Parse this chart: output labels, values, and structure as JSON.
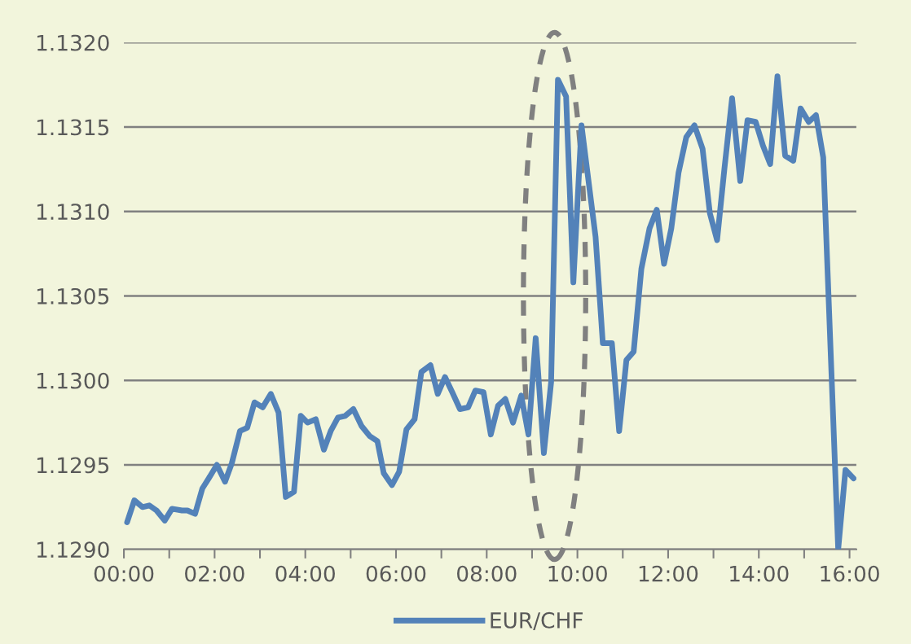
{
  "chart_data": {
    "type": "line",
    "legend": "bottom",
    "grid": "y",
    "marker": "none",
    "line_style": "solid",
    "xlim": [
      0,
      16.15
    ],
    "ylim": [
      1.129,
      1.132
    ],
    "xticks": [
      {
        "value": 0,
        "label": "00:00"
      },
      {
        "value": 1,
        "label": null
      },
      {
        "value": 2,
        "label": "02:00"
      },
      {
        "value": 3,
        "label": null
      },
      {
        "value": 4,
        "label": "04:00"
      },
      {
        "value": 5,
        "label": null
      },
      {
        "value": 6,
        "label": "06:00"
      },
      {
        "value": 7,
        "label": null
      },
      {
        "value": 8,
        "label": "08:00"
      },
      {
        "value": 9,
        "label": null
      },
      {
        "value": 10,
        "label": "10:00"
      },
      {
        "value": 11,
        "label": null
      },
      {
        "value": 12,
        "label": "12:00"
      },
      {
        "value": 13,
        "label": null
      },
      {
        "value": 14,
        "label": "14:00"
      },
      {
        "value": 15,
        "label": null
      },
      {
        "value": 16,
        "label": "16:00"
      }
    ],
    "yticks": [
      {
        "value": 1.129,
        "label": "1.1290"
      },
      {
        "value": 1.1295,
        "label": "1.1295"
      },
      {
        "value": 1.13,
        "label": "1.1300"
      },
      {
        "value": 1.1305,
        "label": "1.1305"
      },
      {
        "value": 1.131,
        "label": "1.1310"
      },
      {
        "value": 1.1315,
        "label": "1.1315"
      },
      {
        "value": 1.132,
        "label": "1.1320"
      }
    ],
    "series": [
      {
        "name": "EUR/CHF",
        "color": "#5382b9",
        "x": [
          0.07,
          0.23,
          0.41,
          0.56,
          0.72,
          0.9,
          1.06,
          1.28,
          1.4,
          1.57,
          1.73,
          1.87,
          2.05,
          2.23,
          2.38,
          2.56,
          2.72,
          2.88,
          3.06,
          3.24,
          3.41,
          3.57,
          3.75,
          3.9,
          4.05,
          4.23,
          4.41,
          4.56,
          4.72,
          4.88,
          5.06,
          5.24,
          5.42,
          5.59,
          5.73,
          5.91,
          6.07,
          6.23,
          6.41,
          6.56,
          6.76,
          6.92,
          7.08,
          7.24,
          7.41,
          7.59,
          7.75,
          7.93,
          8.09,
          8.25,
          8.41,
          8.58,
          8.76,
          8.92,
          9.08,
          9.26,
          9.42,
          9.57,
          9.75,
          9.91,
          10.09,
          10.4,
          10.56,
          10.76,
          10.92,
          11.08,
          11.24,
          11.41,
          11.59,
          11.75,
          11.91,
          12.07,
          12.23,
          12.4,
          12.58,
          12.76,
          12.92,
          13.08,
          13.24,
          13.41,
          13.59,
          13.75,
          13.93,
          14.09,
          14.25,
          14.41,
          14.58,
          14.76,
          14.92,
          15.1,
          15.26,
          15.42,
          15.75,
          15.91,
          16.09
        ],
        "values": [
          1.12916,
          1.12929,
          1.12925,
          1.12926,
          1.12923,
          1.12917,
          1.12924,
          1.12923,
          1.12923,
          1.12921,
          1.12936,
          1.12942,
          1.1295,
          1.1294,
          1.12951,
          1.1297,
          1.12972,
          1.12987,
          1.12984,
          1.12992,
          1.12981,
          1.12931,
          1.12934,
          1.12979,
          1.12975,
          1.12977,
          1.12959,
          1.1297,
          1.12978,
          1.12979,
          1.12983,
          1.12973,
          1.12967,
          1.12964,
          1.12945,
          1.12938,
          1.12946,
          1.12971,
          1.12977,
          1.13005,
          1.13009,
          1.12992,
          1.13002,
          1.12993,
          1.12983,
          1.12984,
          1.12994,
          1.12993,
          1.12968,
          1.12985,
          1.12989,
          1.12975,
          1.12991,
          1.12968,
          1.13025,
          1.12957,
          1.12999,
          1.13178,
          1.13168,
          1.13058,
          1.13151,
          1.13085,
          1.13022,
          1.13022,
          1.1297,
          1.13012,
          1.13017,
          1.13066,
          1.1309,
          1.13101,
          1.13069,
          1.1309,
          1.13123,
          1.13144,
          1.13151,
          1.13137,
          1.13099,
          1.13083,
          1.13125,
          1.13167,
          1.13118,
          1.13154,
          1.13153,
          1.13139,
          1.13128,
          1.1318,
          1.13133,
          1.1313,
          1.13161,
          1.13153,
          1.13157,
          1.13132,
          1.129,
          1.12947,
          1.12942
        ]
      }
    ]
  }
}
